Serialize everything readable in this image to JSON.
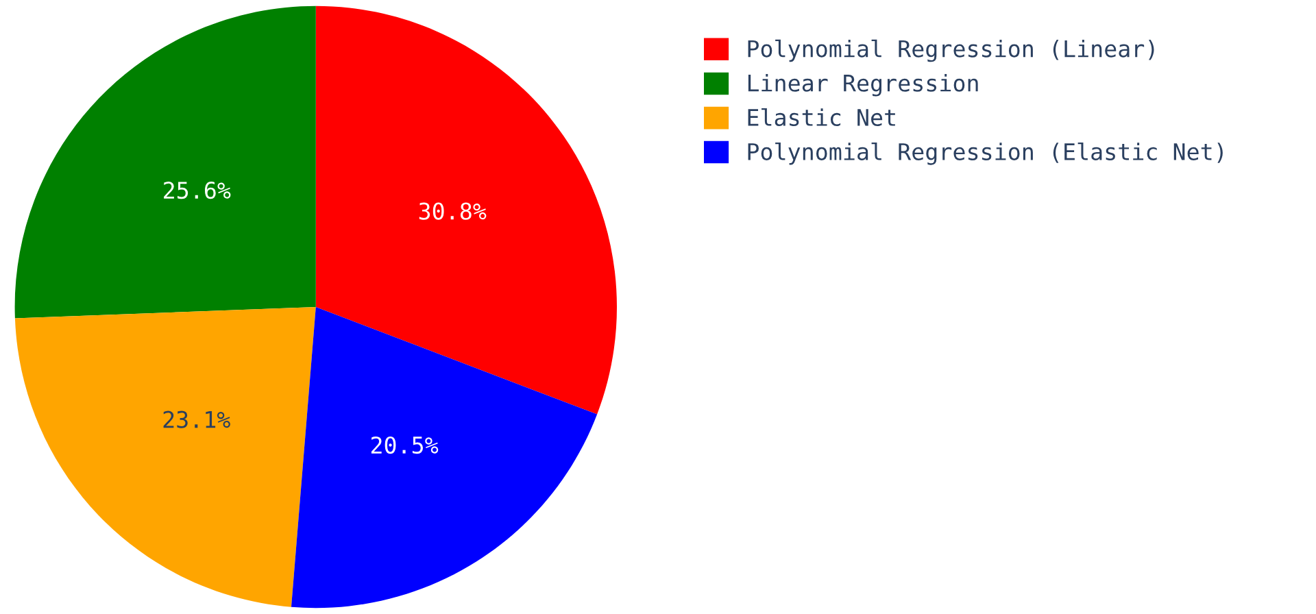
{
  "chart_data": {
    "type": "pie",
    "categories": [
      "Polynomial Regression (Linear)",
      "Linear Regression",
      "Elastic Net",
      "Polynomial Regression (Elastic Net)"
    ],
    "values": [
      30.8,
      25.6,
      23.1,
      20.5
    ],
    "colors": [
      "#ff0000",
      "#008000",
      "#ffa500",
      "#0000ff"
    ],
    "value_labels": [
      "30.8%",
      "25.6%",
      "23.1%",
      "20.5%"
    ],
    "legend": "top right"
  }
}
